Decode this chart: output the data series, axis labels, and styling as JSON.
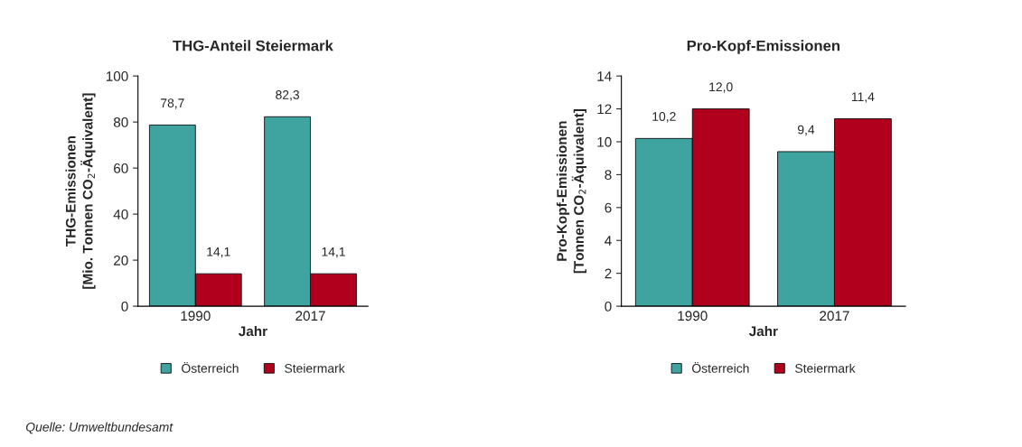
{
  "chart_data": [
    {
      "type": "bar",
      "title": "THG-Anteil Steiermark",
      "xlabel": "Jahr",
      "ylabel": "THG-Emissionen\n[Mio. Tonnen CO$_{2}$-Äquivalent]",
      "categories": [
        "1990",
        "2017"
      ],
      "ylim": [
        0,
        100
      ],
      "yticks": [
        0,
        20,
        40,
        60,
        80,
        100
      ],
      "legend": "bottom",
      "grid": false,
      "series": [
        {
          "name": "Österreich",
          "color": "#3fa3a0",
          "values": [
            78.7,
            82.3
          ],
          "value_labels": [
            "78,7",
            "82,3"
          ]
        },
        {
          "name": "Steiermark",
          "color": "#b0001e",
          "values": [
            14.1,
            14.1
          ],
          "value_labels": [
            "14,1",
            "14,1"
          ]
        }
      ],
      "annotations": [
        "Quelle: Umweltbundesamt"
      ]
    },
    {
      "type": "bar",
      "title": "Pro-Kopf-Emissionen",
      "xlabel": "Jahr",
      "ylabel": "Pro-Kopf-Emissionen\n[Tonnen CO$_{2}$-Äquivalent]",
      "categories": [
        "1990",
        "2017"
      ],
      "ylim": [
        0,
        14
      ],
      "yticks": [
        0,
        2,
        4,
        6,
        8,
        10,
        12,
        14
      ],
      "legend": "bottom",
      "grid": false,
      "series": [
        {
          "name": "Österreich",
          "color": "#3fa3a0",
          "values": [
            10.2,
            9.4
          ],
          "value_labels": [
            "10,2",
            "9,4"
          ]
        },
        {
          "name": "Steiermark",
          "color": "#b0001e",
          "values": [
            12.0,
            11.4
          ],
          "value_labels": [
            "12,0",
            "11,4"
          ]
        }
      ]
    }
  ]
}
